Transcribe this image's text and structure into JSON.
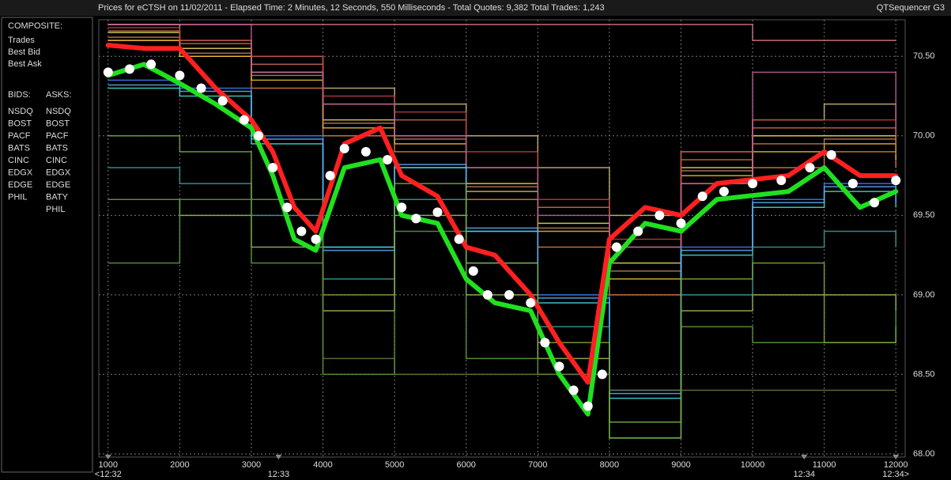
{
  "chart_data": {
    "type": "line",
    "title": "Prices for  eCTSH  on  11/02/2011  -  Elapsed Time: 2 Minutes, 12 Seconds, 550 Milliseconds  -  Total Quotes: 9,382  Total Trades: 1,243",
    "app_name": "QTSequencer G3",
    "legend": {
      "composite_title": "COMPOSITE:",
      "bids_title": "BIDS:",
      "asks_title": "ASKS:"
    },
    "xlim": [
      870,
      12130
    ],
    "xticks": [
      1000,
      2000,
      3000,
      4000,
      5000,
      6000,
      7000,
      8000,
      9000,
      10000,
      11000,
      12000
    ],
    "time_ticks": [
      {
        "value": 1000,
        "label": "<12:32"
      },
      {
        "value": 3380,
        "label": "12:33"
      },
      {
        "value": 10720,
        "label": "12:34"
      },
      {
        "value": 12000,
        "label": "12:34>"
      }
    ],
    "ylim": [
      67.98,
      70.73
    ],
    "yticks": [
      {
        "value": 68,
        "label": "68.00"
      },
      {
        "value": 68.5,
        "label": "68.50"
      },
      {
        "value": 69,
        "label": "69.00"
      },
      {
        "value": 69.5,
        "label": "69.50"
      },
      {
        "value": 70,
        "label": "70.00"
      },
      {
        "value": 70.5,
        "label": "70.50"
      }
    ],
    "grid": true,
    "exchange_x": [
      1000,
      2000,
      3000,
      4000,
      5000,
      6000,
      7000,
      8000,
      9000,
      10000,
      11000,
      12000
    ],
    "asks": [
      {
        "name": "NSDQ",
        "color": "#e08040",
        "values": [
          70.6,
          70.5,
          70.3,
          70.0,
          69.9,
          69.6,
          69.3,
          69.0,
          69.7,
          69.8,
          69.9,
          69.8
        ]
      },
      {
        "name": "BOST",
        "color": "#e08080",
        "values": [
          70.7,
          70.7,
          70.7,
          70.7,
          70.7,
          70.7,
          70.7,
          70.7,
          70.7,
          70.6,
          70.6,
          70.6
        ]
      },
      {
        "name": "PACF",
        "color": "#f0e060",
        "values": [
          70.65,
          70.55,
          70.4,
          70.1,
          70.0,
          69.7,
          69.45,
          69.2,
          69.8,
          70.0,
          70.0,
          69.9
        ]
      },
      {
        "name": "BATS",
        "color": "#f0c030",
        "values": [
          70.6,
          70.5,
          70.35,
          70.05,
          69.95,
          69.65,
          69.4,
          69.1,
          69.75,
          69.9,
          69.95,
          69.85
        ]
      },
      {
        "name": "CINC",
        "color": "#d0c080",
        "values": [
          70.7,
          70.6,
          70.5,
          70.3,
          70.2,
          70.0,
          69.8,
          69.5,
          69.9,
          70.1,
          70.2,
          70.1
        ]
      },
      {
        "name": "EDGX",
        "color": "#c08060",
        "values": [
          70.62,
          70.52,
          70.38,
          70.08,
          69.98,
          69.68,
          69.42,
          69.15,
          69.78,
          69.95,
          69.98,
          69.88
        ]
      },
      {
        "name": "EDGE",
        "color": "#d07050",
        "values": [
          70.66,
          70.58,
          70.45,
          70.2,
          70.1,
          69.8,
          69.55,
          69.3,
          69.85,
          70.05,
          70.05,
          69.95
        ]
      },
      {
        "name": "BATY",
        "color": "#c04040",
        "values": [
          70.68,
          70.6,
          70.5,
          70.25,
          70.15,
          69.9,
          69.6,
          69.35,
          69.9,
          70.1,
          70.1,
          70.0
        ]
      },
      {
        "name": "PHIL",
        "color": "#c060a0",
        "values": [
          70.7,
          70.7,
          70.4,
          70.2,
          70.0,
          69.8,
          69.5,
          69.3,
          69.7,
          70.4,
          70.4,
          70.0
        ]
      }
    ],
    "bids": [
      {
        "name": "NSDQ",
        "color": "#4080ff",
        "values": [
          70.35,
          70.3,
          70.0,
          69.3,
          69.8,
          69.4,
          69.0,
          68.4,
          69.3,
          69.6,
          69.7,
          69.6
        ]
      },
      {
        "name": "BOST",
        "color": "#a0c060",
        "values": [
          69.6,
          69.5,
          69.3,
          68.9,
          69.5,
          69.0,
          68.6,
          68.2,
          68.9,
          69.0,
          69.0,
          68.9
        ]
      },
      {
        "name": "PACF",
        "color": "#40e0e0",
        "values": [
          70.3,
          70.25,
          69.95,
          69.3,
          69.8,
          69.4,
          68.95,
          68.35,
          69.25,
          69.55,
          69.65,
          69.55
        ]
      },
      {
        "name": "BATS",
        "color": "#60b0ff",
        "values": [
          70.32,
          70.28,
          69.98,
          69.28,
          69.82,
          69.42,
          68.98,
          68.38,
          69.28,
          69.58,
          69.68,
          69.58
        ]
      },
      {
        "name": "CINC",
        "color": "#40a0a0",
        "values": [
          69.8,
          69.7,
          69.5,
          69.1,
          69.6,
          69.2,
          68.8,
          68.1,
          69.0,
          69.3,
          69.4,
          69.3
        ]
      },
      {
        "name": "EDGX",
        "color": "#60a040",
        "values": [
          69.2,
          69.6,
          69.2,
          68.5,
          69.4,
          68.6,
          68.5,
          68.2,
          68.8,
          68.7,
          68.7,
          68.9
        ]
      },
      {
        "name": "EDGE",
        "color": "#80b040",
        "values": [
          70.0,
          69.9,
          69.6,
          69.0,
          69.7,
          69.2,
          68.7,
          68.1,
          69.1,
          69.2,
          68.7,
          68.8
        ]
      },
      {
        "name": "PHIL",
        "color": "#608040",
        "values": [
          69.6,
          69.6,
          69.6,
          68.6,
          68.5,
          68.5,
          68.5,
          68.4,
          68.4,
          68.4,
          68.4,
          68.4
        ]
      }
    ],
    "composite": [
      {
        "name": "Trades",
        "color": "#ffffff",
        "x": [
          1000,
          1300,
          1600,
          2000,
          2300,
          2600,
          2900,
          3100,
          3300,
          3500,
          3700,
          3900,
          4100,
          4300,
          4600,
          4900,
          5100,
          5300,
          5600,
          5900,
          6100,
          6300,
          6600,
          6900,
          7100,
          7300,
          7500,
          7700,
          7900,
          8100,
          8400,
          8700,
          9000,
          9300,
          9600,
          10000,
          10400,
          10800,
          11100,
          11400,
          11700,
          12000
        ],
        "values": [
          70.4,
          70.42,
          70.45,
          70.38,
          70.3,
          70.22,
          70.1,
          70.0,
          69.8,
          69.55,
          69.4,
          69.35,
          69.75,
          69.92,
          69.9,
          69.85,
          69.55,
          69.48,
          69.52,
          69.35,
          69.15,
          69.0,
          69.0,
          68.95,
          68.7,
          68.55,
          68.4,
          68.3,
          68.5,
          69.3,
          69.4,
          69.5,
          69.45,
          69.62,
          69.65,
          69.7,
          69.72,
          69.8,
          69.88,
          69.7,
          69.58,
          69.72
        ]
      },
      {
        "name": "Best Bid",
        "color": "#20e020",
        "x": [
          1000,
          1500,
          2000,
          2500,
          3000,
          3300,
          3600,
          3900,
          4300,
          4800,
          5100,
          5600,
          6000,
          6400,
          6900,
          7300,
          7700,
          8000,
          8500,
          9000,
          9500,
          10500,
          11000,
          11500,
          12000
        ],
        "values": [
          70.38,
          70.45,
          70.33,
          70.2,
          70.05,
          69.75,
          69.35,
          69.28,
          69.8,
          69.85,
          69.5,
          69.45,
          69.1,
          68.95,
          68.9,
          68.5,
          68.25,
          69.2,
          69.45,
          69.4,
          69.6,
          69.65,
          69.8,
          69.55,
          69.65
        ]
      },
      {
        "name": "Best Ask",
        "color": "#ff2020",
        "x": [
          1000,
          1500,
          2000,
          2500,
          3000,
          3300,
          3600,
          3900,
          4300,
          4800,
          5100,
          5600,
          6000,
          6400,
          6900,
          7300,
          7700,
          8000,
          8500,
          9000,
          9500,
          10500,
          11000,
          11500,
          12000
        ],
        "values": [
          70.57,
          70.55,
          70.55,
          70.3,
          70.1,
          69.9,
          69.55,
          69.4,
          69.95,
          70.05,
          69.75,
          69.62,
          69.3,
          69.25,
          69.0,
          68.7,
          68.45,
          69.35,
          69.55,
          69.5,
          69.7,
          69.75,
          69.9,
          69.75,
          69.75
        ]
      }
    ]
  }
}
